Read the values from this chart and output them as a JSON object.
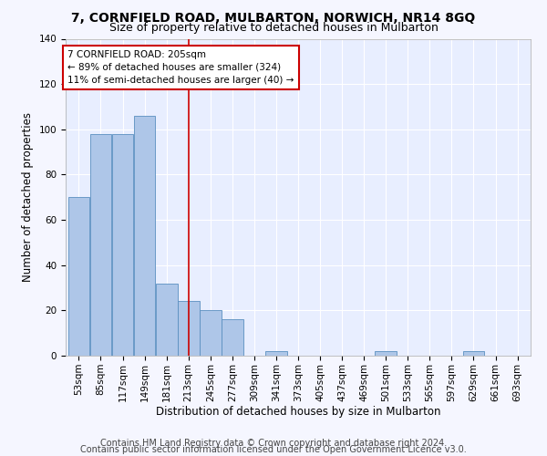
{
  "title1": "7, CORNFIELD ROAD, MULBARTON, NORWICH, NR14 8GQ",
  "title2": "Size of property relative to detached houses in Mulbarton",
  "xlabel": "Distribution of detached houses by size in Mulbarton",
  "ylabel": "Number of detached properties",
  "bins": [
    53,
    85,
    117,
    149,
    181,
    213,
    245,
    277,
    309,
    341,
    373,
    405,
    437,
    469,
    501,
    533,
    565,
    597,
    629,
    661,
    693
  ],
  "bar_heights": [
    70,
    98,
    98,
    106,
    32,
    24,
    20,
    16,
    0,
    2,
    0,
    0,
    0,
    0,
    2,
    0,
    0,
    0,
    2,
    0,
    0
  ],
  "bar_color": "#aec6e8",
  "bar_edge_color": "#5a8fc0",
  "vline_x": 213,
  "vline_color": "#cc0000",
  "annotation_text": "7 CORNFIELD ROAD: 205sqm\n← 89% of detached houses are smaller (324)\n11% of semi-detached houses are larger (40) →",
  "annotation_box_color": "#cc0000",
  "ylim": [
    0,
    140
  ],
  "yticks": [
    0,
    20,
    40,
    60,
    80,
    100,
    120,
    140
  ],
  "footer1": "Contains HM Land Registry data © Crown copyright and database right 2024.",
  "footer2": "Contains public sector information licensed under the Open Government Licence v3.0.",
  "bg_color": "#e8eeff",
  "fig_bg_color": "#f5f6ff",
  "grid_color": "#ffffff",
  "title1_fontsize": 10,
  "title2_fontsize": 9,
  "axis_label_fontsize": 8.5,
  "tick_fontsize": 7.5,
  "footer_fontsize": 7,
  "annot_fontsize": 7.5
}
